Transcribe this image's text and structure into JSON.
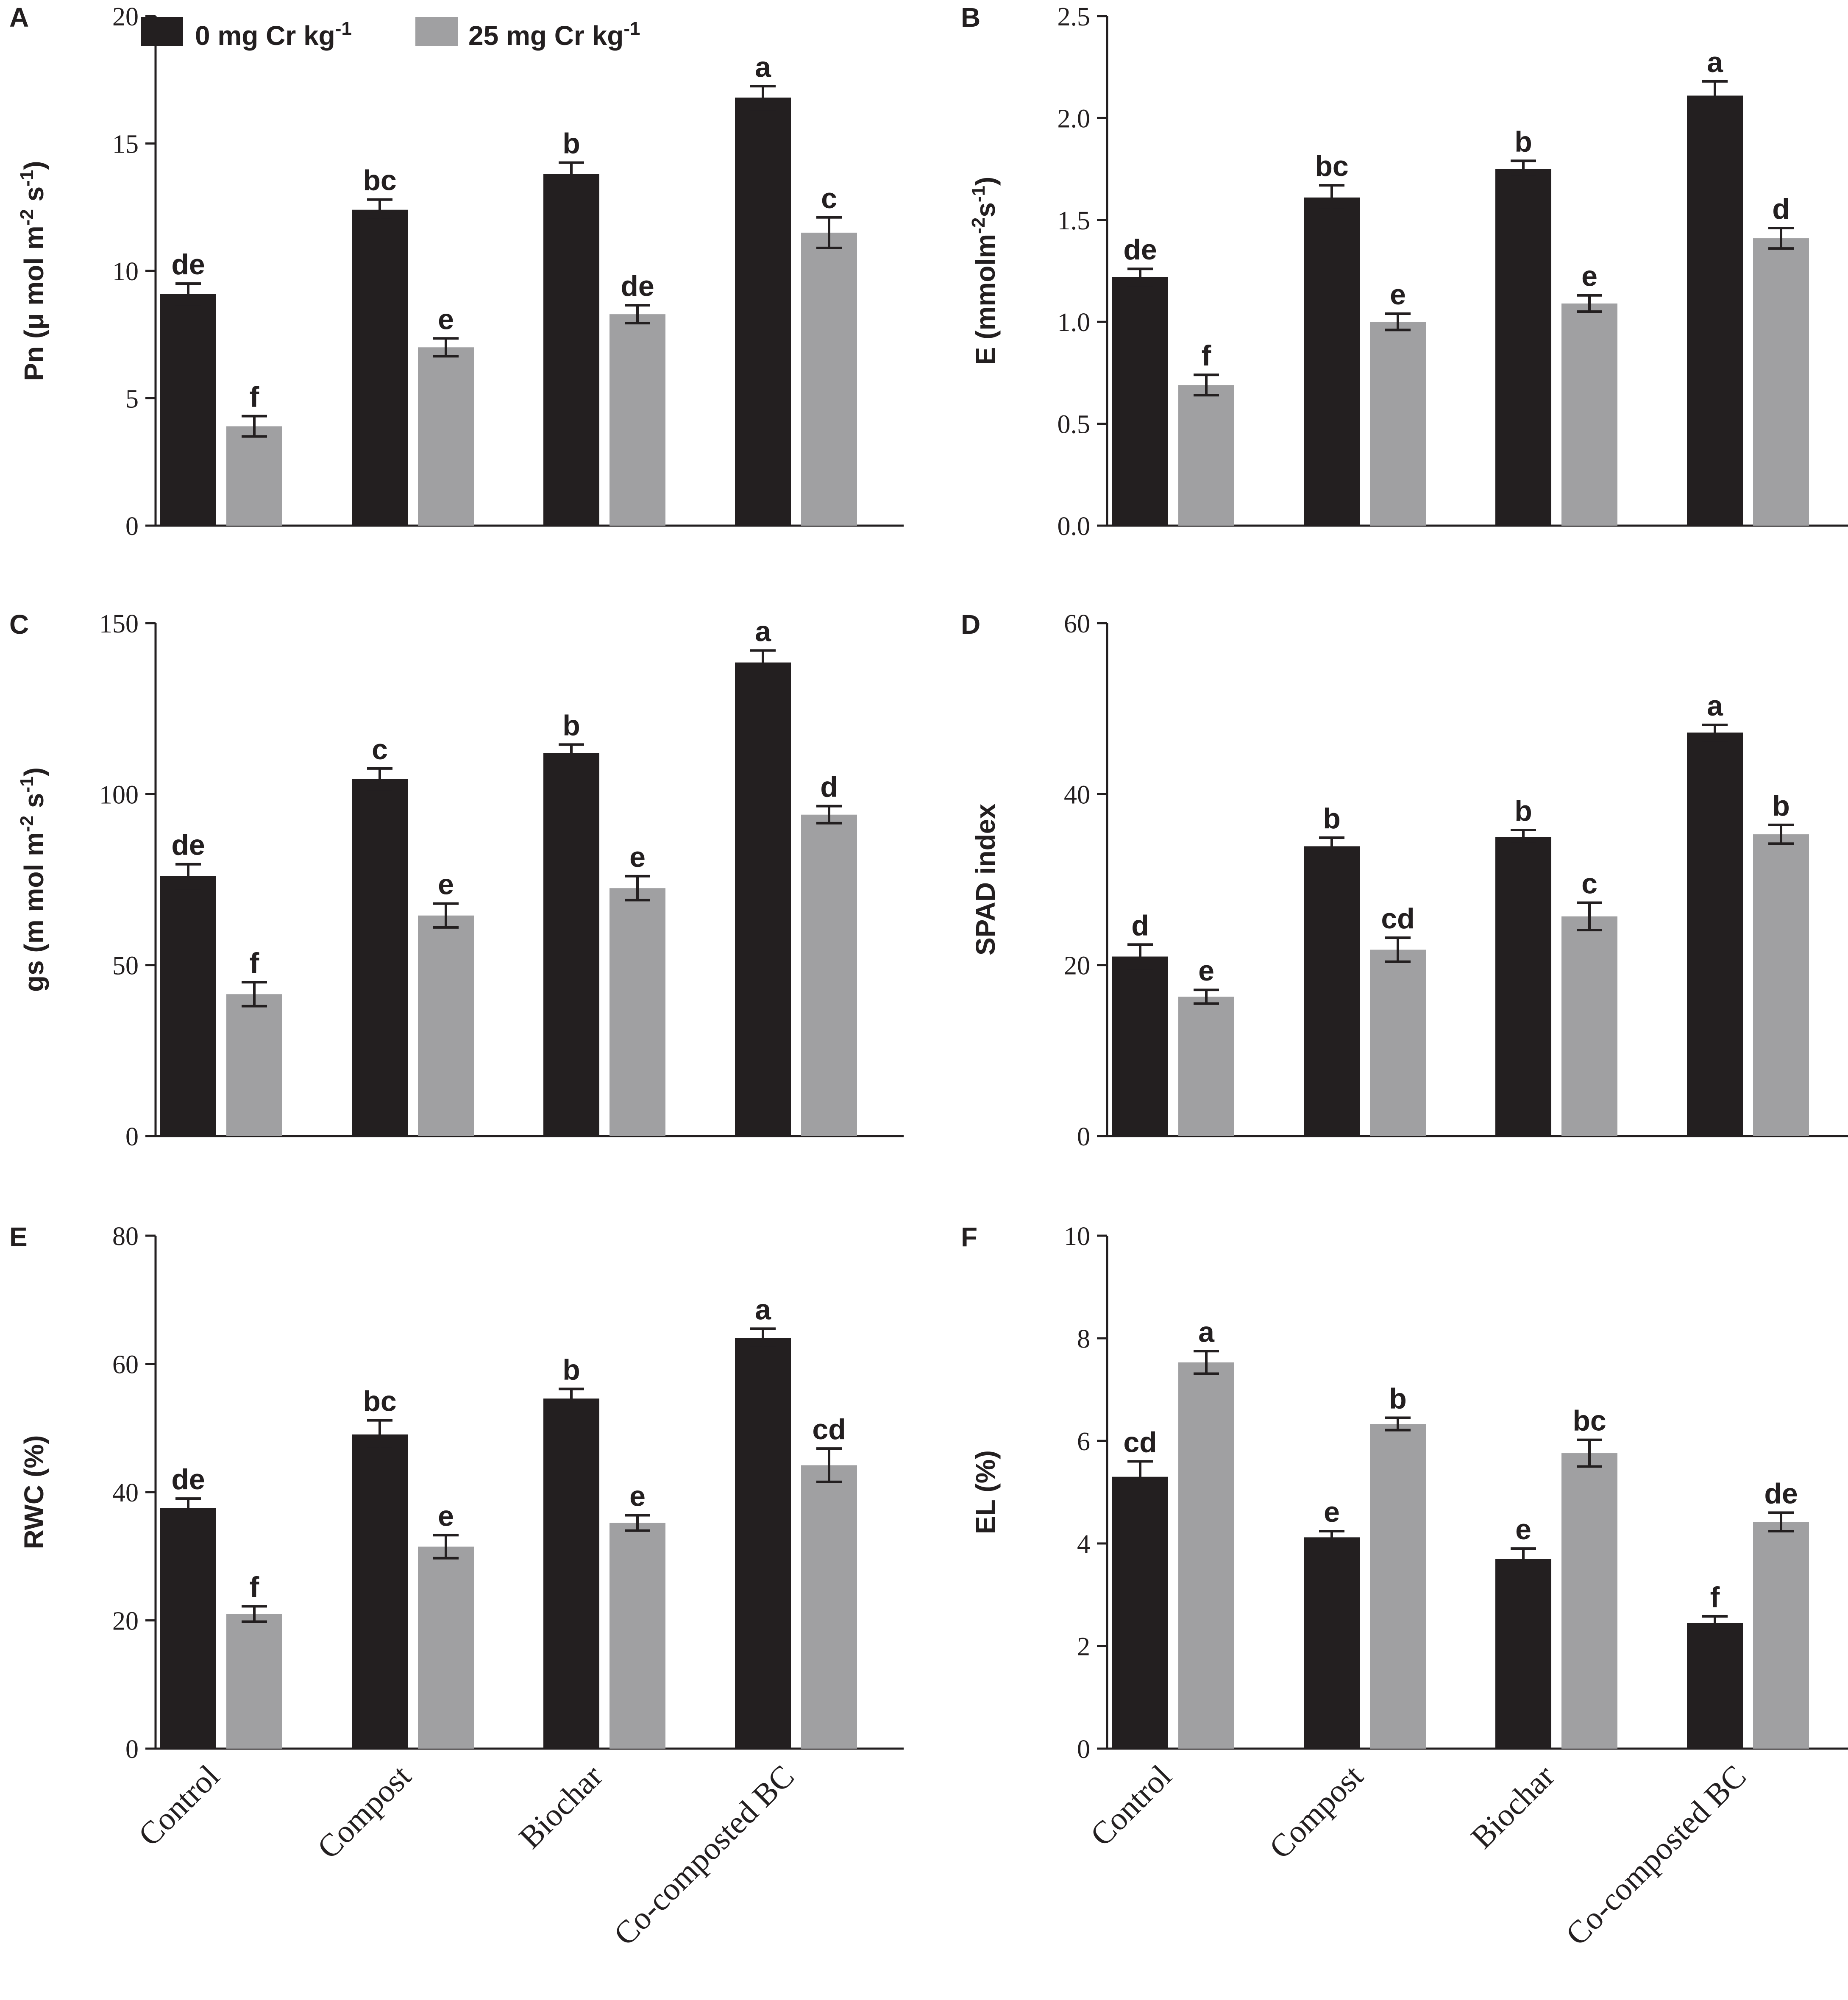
{
  "colors": {
    "series0": "#231f20",
    "series1": "#a0a0a2",
    "ink": "#231f20"
  },
  "legend": {
    "entries": [
      {
        "prefix": "0 mg Cr kg",
        "sup": "-1"
      },
      {
        "prefix": "25 mg Cr kg",
        "sup": "-1"
      }
    ]
  },
  "chart_data": [
    {
      "panel": "A",
      "type": "bar",
      "ylabel_parts": [
        [
          "Pn (μ mol m",
          false
        ],
        [
          "-2",
          true
        ],
        [
          " s",
          false
        ],
        [
          "-1",
          true
        ],
        [
          ")",
          false
        ]
      ],
      "yticks": [
        "0",
        "5",
        "10",
        "15",
        "20"
      ],
      "ylim": [
        0,
        20
      ],
      "categories": [
        "Control",
        "Compost",
        "Biochar",
        "Co-composted BC"
      ],
      "series": [
        {
          "name": "0 mg Cr kg-1",
          "values": [
            9.1,
            12.4,
            13.8,
            16.8
          ],
          "errors": [
            0.4,
            0.4,
            0.45,
            0.45
          ],
          "letters": [
            "de",
            "bc",
            "b",
            "a"
          ]
        },
        {
          "name": "25 mg Cr kg-1",
          "values": [
            3.9,
            7.0,
            8.3,
            11.5
          ],
          "errors": [
            0.4,
            0.35,
            0.35,
            0.6
          ],
          "letters": [
            "f",
            "e",
            "de",
            "c"
          ]
        }
      ]
    },
    {
      "panel": "B",
      "type": "bar",
      "ylabel_parts": [
        [
          "E (mmolm",
          false
        ],
        [
          "-2",
          true
        ],
        [
          "s",
          false
        ],
        [
          "-1",
          true
        ],
        [
          ")",
          false
        ]
      ],
      "yticks": [
        "0.0",
        "0.5",
        "1.0",
        "1.5",
        "2.0",
        "2.5"
      ],
      "ylim": [
        0,
        2.5
      ],
      "categories": [
        "Control",
        "Compost",
        "Biochar",
        "Co-composted BC"
      ],
      "series": [
        {
          "name": "0 mg Cr kg-1",
          "values": [
            1.22,
            1.61,
            1.75,
            2.11
          ],
          "errors": [
            0.04,
            0.06,
            0.04,
            0.07
          ],
          "letters": [
            "de",
            "bc",
            "b",
            "a"
          ]
        },
        {
          "name": "25 mg Cr kg-1",
          "values": [
            0.69,
            1.0,
            1.09,
            1.41
          ],
          "errors": [
            0.05,
            0.04,
            0.04,
            0.05
          ],
          "letters": [
            "f",
            "e",
            "e",
            "d"
          ]
        }
      ]
    },
    {
      "panel": "C",
      "type": "bar",
      "ylabel_parts": [
        [
          "gs (m mol m",
          false
        ],
        [
          "-2",
          true
        ],
        [
          " s",
          false
        ],
        [
          "-1",
          true
        ],
        [
          ")",
          false
        ]
      ],
      "yticks": [
        "0",
        "50",
        "100",
        "150"
      ],
      "ylim": [
        0,
        150
      ],
      "categories": [
        "Control",
        "Compost",
        "Biochar",
        "Co-composted BC"
      ],
      "series": [
        {
          "name": "0 mg Cr kg-1",
          "values": [
            76,
            104.5,
            112,
            138.5
          ],
          "errors": [
            3.5,
            3,
            2.5,
            3.5
          ],
          "letters": [
            "de",
            "c",
            "b",
            "a"
          ]
        },
        {
          "name": "25 mg Cr kg-1",
          "values": [
            41.5,
            64.5,
            72.5,
            94
          ],
          "errors": [
            3.5,
            3.5,
            3.5,
            2.5
          ],
          "letters": [
            "f",
            "e",
            "e",
            "d"
          ]
        }
      ]
    },
    {
      "panel": "D",
      "type": "bar",
      "ylabel_parts": [
        [
          "SPAD index",
          false
        ]
      ],
      "yticks": [
        "0",
        "20",
        "40",
        "60"
      ],
      "ylim": [
        0,
        60
      ],
      "categories": [
        "Control",
        "Compost",
        "Biochar",
        "Co-composted BC"
      ],
      "series": [
        {
          "name": "0 mg Cr kg-1",
          "values": [
            21,
            33.9,
            35,
            47.2
          ],
          "errors": [
            1.4,
            1.0,
            0.8,
            0.9
          ],
          "letters": [
            "d",
            "b",
            "b",
            "a"
          ]
        },
        {
          "name": "25 mg Cr kg-1",
          "values": [
            16.3,
            21.8,
            25.7,
            35.3
          ],
          "errors": [
            0.8,
            1.4,
            1.6,
            1.1
          ],
          "letters": [
            "e",
            "cd",
            "c",
            "b"
          ]
        }
      ]
    },
    {
      "panel": "E",
      "type": "bar",
      "ylabel_parts": [
        [
          "RWC (%)",
          false
        ]
      ],
      "yticks": [
        "0",
        "20",
        "40",
        "60",
        "80"
      ],
      "ylim": [
        0,
        80
      ],
      "categories": [
        "Control",
        "Compost",
        "Biochar",
        "Co-composted BC"
      ],
      "series": [
        {
          "name": "0 mg Cr kg-1",
          "values": [
            37.5,
            49,
            54.6,
            64
          ],
          "errors": [
            1.5,
            2.2,
            1.5,
            1.5
          ],
          "letters": [
            "de",
            "bc",
            "b",
            "a"
          ]
        },
        {
          "name": "25 mg Cr kg-1",
          "values": [
            21,
            31.5,
            35.2,
            44.2
          ],
          "errors": [
            1.2,
            1.8,
            1.2,
            2.6
          ],
          "letters": [
            "f",
            "e",
            "e",
            "cd"
          ]
        }
      ]
    },
    {
      "panel": "F",
      "type": "bar",
      "ylabel_parts": [
        [
          "EL (%)",
          false
        ]
      ],
      "yticks": [
        "0",
        "2",
        "4",
        "6",
        "8",
        "10"
      ],
      "ylim": [
        0,
        10
      ],
      "categories": [
        "Control",
        "Compost",
        "Biochar",
        "Co-composted BC"
      ],
      "series": [
        {
          "name": "0 mg Cr kg-1",
          "values": [
            5.3,
            4.12,
            3.7,
            2.45
          ],
          "errors": [
            0.3,
            0.12,
            0.2,
            0.13
          ],
          "letters": [
            "cd",
            "e",
            "e",
            "f"
          ]
        },
        {
          "name": "25 mg Cr kg-1",
          "values": [
            7.53,
            6.33,
            5.76,
            4.42
          ],
          "errors": [
            0.22,
            0.12,
            0.26,
            0.18
          ],
          "letters": [
            "a",
            "b",
            "bc",
            "de"
          ]
        }
      ]
    }
  ]
}
